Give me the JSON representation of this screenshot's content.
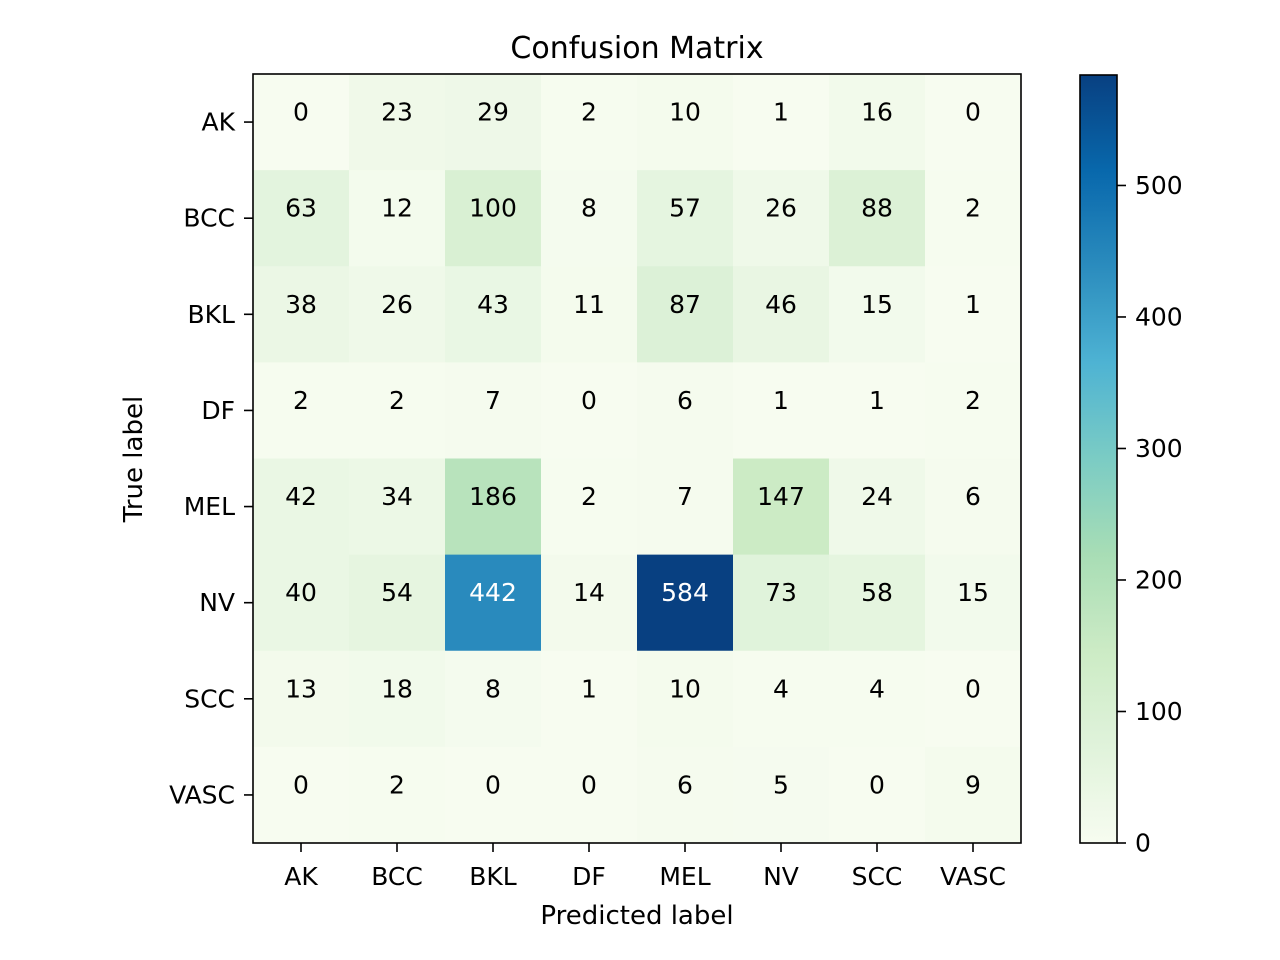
{
  "chart_data": {
    "type": "heatmap",
    "title": "Confusion Matrix",
    "xlabel": "Predicted label",
    "ylabel": "True label",
    "x_categories": [
      "AK",
      "BCC",
      "BKL",
      "DF",
      "MEL",
      "NV",
      "SCC",
      "VASC"
    ],
    "y_categories": [
      "AK",
      "BCC",
      "BKL",
      "DF",
      "MEL",
      "NV",
      "SCC",
      "VASC"
    ],
    "matrix": [
      [
        0,
        23,
        29,
        2,
        10,
        1,
        16,
        0
      ],
      [
        63,
        12,
        100,
        8,
        57,
        26,
        88,
        2
      ],
      [
        38,
        26,
        43,
        11,
        87,
        46,
        15,
        1
      ],
      [
        2,
        2,
        7,
        0,
        6,
        1,
        1,
        2
      ],
      [
        42,
        34,
        186,
        2,
        7,
        147,
        24,
        6
      ],
      [
        40,
        54,
        442,
        14,
        584,
        73,
        58,
        15
      ],
      [
        13,
        18,
        8,
        1,
        10,
        4,
        4,
        0
      ],
      [
        0,
        2,
        0,
        0,
        6,
        5,
        0,
        9
      ]
    ],
    "colormap": "GnBu",
    "vmin": 0,
    "vmax": 584,
    "colorbar_ticks": [
      0,
      100,
      200,
      300,
      400,
      500
    ],
    "colorbar_tick_labels": [
      "0",
      "100",
      "200",
      "300",
      "400",
      "500"
    ],
    "text_color_light": "#ffffff",
    "text_color_dark": "#000000"
  }
}
